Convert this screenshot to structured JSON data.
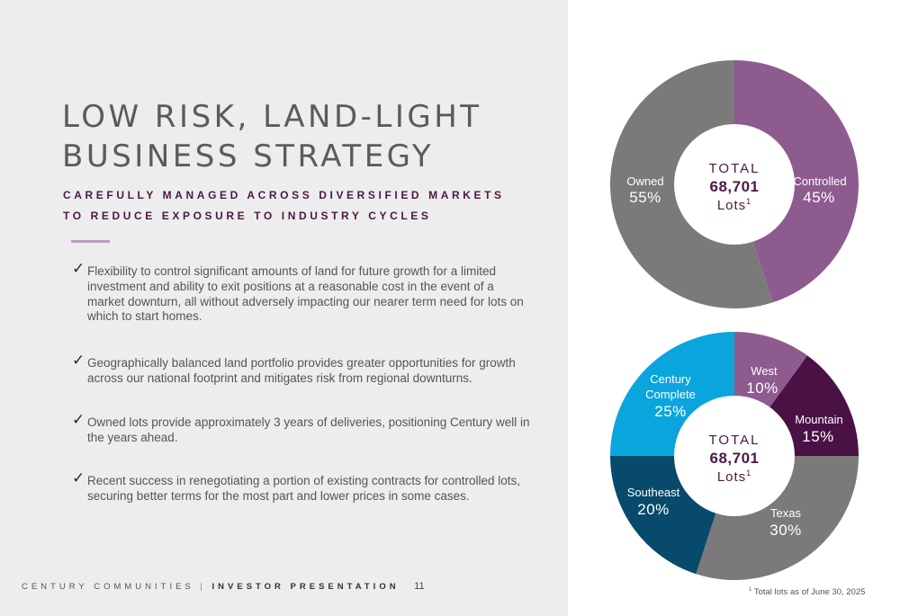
{
  "title_lines": [
    "LOW RISK, LAND-LIGHT",
    "BUSINESS STRATEGY"
  ],
  "subtitle_lines": [
    "CAREFULLY MANAGED ACROSS DIVERSIFIED MARKETS",
    "TO REDUCE EXPOSURE TO INDUSTRY CYCLES"
  ],
  "check_glyph": "✓",
  "bullets": [
    "Flexibility to control significant amounts of land for future growth for a limited investment and ability to exit positions at a reasonable cost in the event of a market downturn, all without adversely impacting our nearer term need for lots on which to start homes.",
    "Geographically balanced land portfolio provides greater opportunities for growth across our national footprint and mitigates risk from regional downturns.",
    "Owned lots provide approximately 3 years of deliveries, positioning Century well in the years ahead.",
    "Recent success in renegotiating a portion of existing contracts for controlled lots, securing better terms for the most part and lower prices in some cases."
  ],
  "footer": {
    "company": "CENTURY COMMUNITIES",
    "separator": "|",
    "presentation": "INVESTOR PRESENTATION",
    "page": "11"
  },
  "footnote": {
    "marker": "1",
    "text": "Total lots as of June 30, 2025"
  },
  "chart_data": [
    {
      "type": "pie",
      "center": {
        "line1": "TOTAL",
        "line2": "68,701",
        "line3": "Lots",
        "sup": "1"
      },
      "slices": [
        {
          "name": "Controlled",
          "value": 45,
          "value_label": "45%",
          "color": "#8e5b8f"
        },
        {
          "name": "Owned",
          "value": 55,
          "value_label": "55%",
          "color": "#7a7a7a"
        }
      ]
    },
    {
      "type": "pie",
      "center": {
        "line1": "TOTAL",
        "line2": "68,701",
        "line3": "Lots",
        "sup": "1"
      },
      "slices": [
        {
          "name": "West",
          "value": 10,
          "value_label": "10%",
          "color": "#8e5b8f"
        },
        {
          "name": "Mountain",
          "value": 15,
          "value_label": "15%",
          "color": "#4a1145"
        },
        {
          "name": "Texas",
          "value": 30,
          "value_label": "30%",
          "color": "#7a7a7a"
        },
        {
          "name": "Southeast",
          "value": 20,
          "value_label": "20%",
          "color": "#074a6b"
        },
        {
          "name": "Century Complete",
          "value": 25,
          "value_label": "25%",
          "color": "#0ba5dd"
        }
      ]
    }
  ]
}
